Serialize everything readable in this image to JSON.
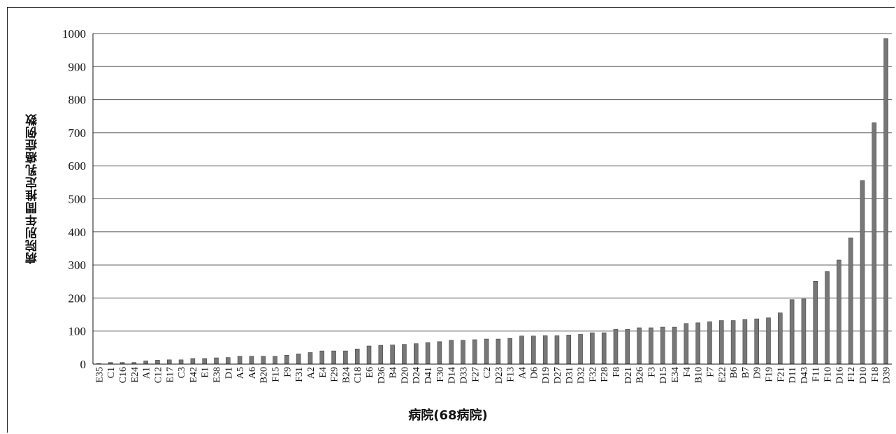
{
  "chart_data": {
    "type": "bar",
    "xlabel": "病院(68病院)",
    "ylabel": "病院別年間推定乳癌症例数",
    "ylim": [
      0,
      1000
    ],
    "yticks": [
      0,
      100,
      200,
      300,
      400,
      500,
      600,
      700,
      800,
      900,
      1000
    ],
    "grid": true,
    "bar_color": "#777777",
    "categories": [
      "E35",
      "C1",
      "C16",
      "E24",
      "A1",
      "C12",
      "E17",
      "C3",
      "E42",
      "E1",
      "E38",
      "D1",
      "A5",
      "A6",
      "B20",
      "F15",
      "F9",
      "F31",
      "A2",
      "E4",
      "F29",
      "B24",
      "C18",
      "E6",
      "D36",
      "B4",
      "D20",
      "D24",
      "D41",
      "F30",
      "D14",
      "D33",
      "F27",
      "C2",
      "D23",
      "F13",
      "A4",
      "D6",
      "D19",
      "D27",
      "D31",
      "D32",
      "F32",
      "F28",
      "F8",
      "D21",
      "B26",
      "F3",
      "D15",
      "E34",
      "F4",
      "B10",
      "F7",
      "E22",
      "B6",
      "B7",
      "D9",
      "F19",
      "F21",
      "D11",
      "D43",
      "F11",
      "F10",
      "D16",
      "F12",
      "D10",
      "F18",
      "D39"
    ],
    "values": [
      2,
      5,
      5,
      5,
      10,
      12,
      13,
      13,
      17,
      17,
      19,
      20,
      24,
      24,
      24,
      24,
      27,
      31,
      35,
      40,
      40,
      40,
      46,
      55,
      57,
      58,
      60,
      62,
      65,
      68,
      72,
      72,
      74,
      76,
      76,
      78,
      85,
      85,
      86,
      86,
      88,
      90,
      95,
      95,
      105,
      105,
      110,
      110,
      112,
      112,
      123,
      125,
      128,
      132,
      132,
      135,
      137,
      140,
      155,
      195,
      197,
      251,
      280,
      315,
      382,
      555,
      730,
      985
    ]
  }
}
